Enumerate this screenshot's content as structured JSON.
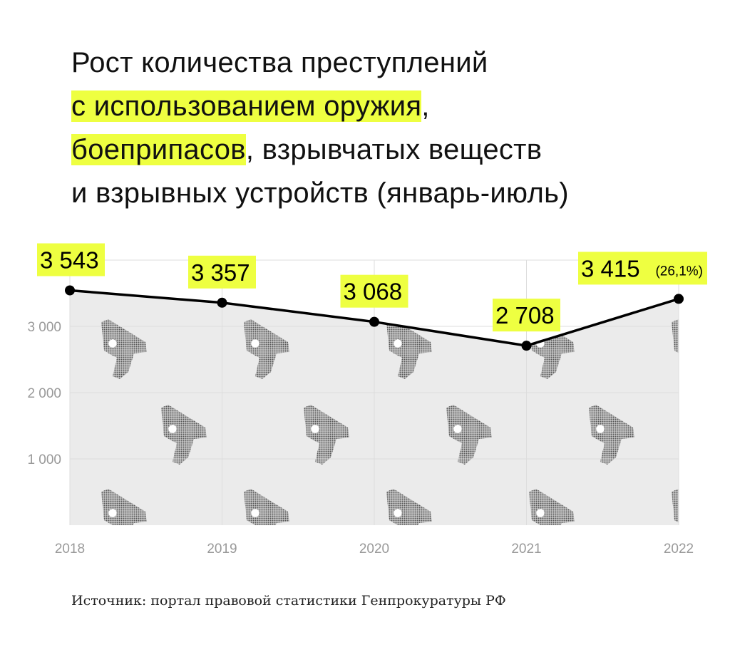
{
  "title": {
    "parts": [
      {
        "text": "Рост количества преступлений",
        "highlight": false,
        "br": true
      },
      {
        "text": "с использованием оружия",
        "highlight": true,
        "br": false
      },
      {
        "text": ",",
        "highlight": false,
        "br": true
      },
      {
        "text": "боеприпасов",
        "highlight": true,
        "br": false
      },
      {
        "text": ", взрывчатых веществ",
        "highlight": false,
        "br": true
      },
      {
        "text": "и взрывных устройств (январь-июль)",
        "highlight": false,
        "br": false
      }
    ]
  },
  "source": "Источник: портал правовой статистики Генпрокуратуры РФ",
  "colors": {
    "highlight": "#eeff41",
    "line": "#000000",
    "area": "#ebebeb",
    "grid": "#dddddd",
    "tick": "#999999"
  },
  "chart_data": {
    "type": "line",
    "categories": [
      "2018",
      "2019",
      "2020",
      "2021",
      "2022"
    ],
    "values": [
      3543,
      3357,
      3068,
      2708,
      3415
    ],
    "data_labels": [
      "3 543",
      "3 357",
      "3 068",
      "2 708",
      "3 415"
    ],
    "annotations": [
      {
        "category": "2022",
        "text": "(26,1%)"
      }
    ],
    "yticks": [
      1000,
      2000,
      3000,
      4000
    ],
    "ytick_labels": [
      "1 000",
      "2 000",
      "3 000",
      ""
    ],
    "ylim": [
      0,
      4000
    ],
    "grid": true,
    "area_fill": true,
    "background_pattern": "pistol-icon"
  }
}
